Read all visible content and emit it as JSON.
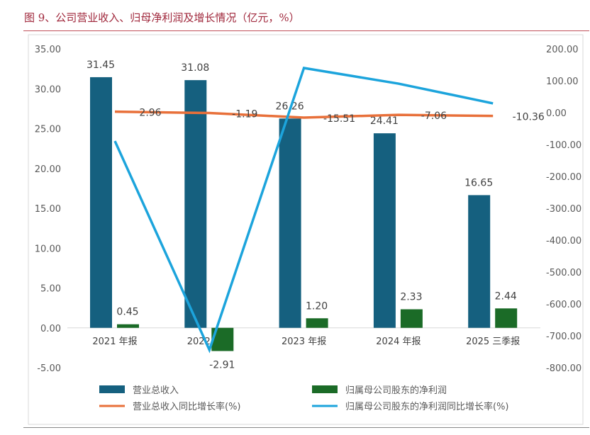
{
  "title": "图 9、公司营业收入、归母净利润及增长情况（亿元，%）",
  "chart_data": {
    "type": "bar+line",
    "categories": [
      "2021 年报",
      "2022 年报",
      "2023 年报",
      "2024 年报",
      "2025 三季报"
    ],
    "left_axis": {
      "ylim": [
        -5,
        35
      ],
      "ticks": [
        "-5.00",
        "0.00",
        "5.00",
        "10.00",
        "15.00",
        "20.00",
        "25.00",
        "30.00",
        "35.00"
      ]
    },
    "right_axis": {
      "ylim": [
        -800,
        200
      ],
      "ticks": [
        "-800.00",
        "-700.00",
        "-600.00",
        "-500.00",
        "-400.00",
        "-300.00",
        "-200.00",
        "-100.00",
        "0.00",
        "100.00",
        "200.00"
      ]
    },
    "series": [
      {
        "name": "营业总收入",
        "type": "bar",
        "axis": "left",
        "color": "#15607f",
        "values": [
          31.45,
          31.08,
          26.26,
          24.41,
          16.65
        ],
        "labels": [
          "31.45",
          "31.08",
          "26.26",
          "24.41",
          "16.65"
        ]
      },
      {
        "name": "归属母公司股东的净利润",
        "type": "bar",
        "axis": "left",
        "color": "#1b6b27",
        "values": [
          0.45,
          -2.91,
          1.2,
          2.33,
          2.44
        ],
        "labels": [
          "0.45",
          "-2.91",
          "1.20",
          "2.33",
          "2.44"
        ]
      },
      {
        "name": "营业总收入同比增长率(%)",
        "type": "line",
        "axis": "right",
        "color": "#e8703a",
        "values": [
          2.96,
          -1.19,
          -15.51,
          -7.06,
          -10.36
        ],
        "labels": [
          "2.96",
          "-1.19",
          "-15.51",
          "-7.06",
          "-10.36"
        ]
      },
      {
        "name": "归属母公司股东的净利润同比增长率(%)",
        "type": "line",
        "axis": "right",
        "color": "#1ca4dc",
        "values": [
          -89,
          -744,
          140,
          91,
          29
        ]
      }
    ],
    "legend": "bottom"
  }
}
